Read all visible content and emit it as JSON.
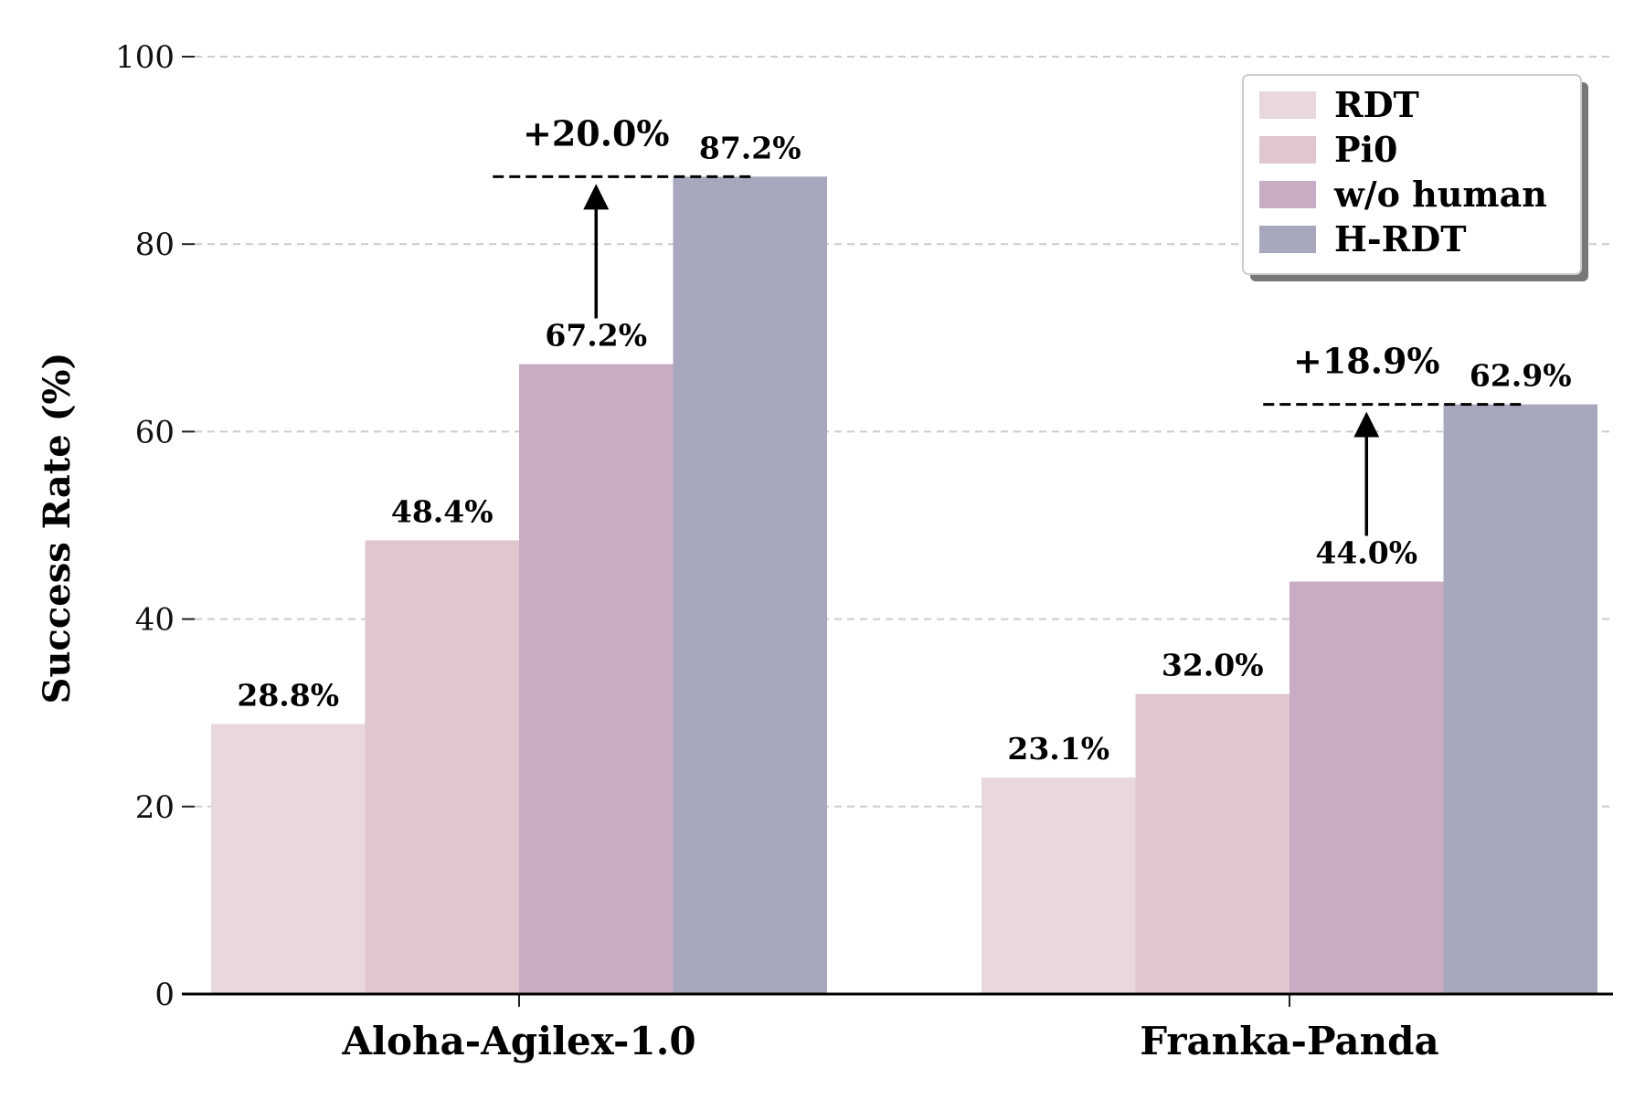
{
  "chart_data": {
    "type": "bar",
    "categories": [
      "Aloha-Agilex-1.0",
      "Franka-Panda"
    ],
    "series": [
      {
        "name": "RDT",
        "values": [
          28.8,
          23.1
        ],
        "color": "#e8d7de"
      },
      {
        "name": "Pi0",
        "values": [
          48.4,
          32.0
        ],
        "color": "#dfc6cf"
      },
      {
        "name": "w/o human",
        "values": [
          67.2,
          44.0
        ],
        "color": "#c8acc4"
      },
      {
        "name": "H-RDT",
        "values": [
          87.2,
          62.9
        ],
        "color": "#a7a8bd"
      }
    ],
    "bar_labels": [
      [
        "28.8%",
        "23.1%"
      ],
      [
        "48.4%",
        "32.0%"
      ],
      [
        "67.2%",
        "44.0%"
      ],
      [
        "87.2%",
        "62.9%"
      ]
    ],
    "improvements": [
      {
        "category": "Aloha-Agilex-1.0",
        "from": 67.2,
        "to": 87.2,
        "label": "+20.0%"
      },
      {
        "category": "Franka-Panda",
        "from": 44.0,
        "to": 62.9,
        "label": "+18.9%"
      }
    ],
    "ylabel": "Success Rate (%)",
    "xlabel": "",
    "title": "",
    "ylim": [
      0,
      100
    ],
    "yticks": [
      0,
      20,
      40,
      60,
      80,
      100
    ],
    "grid": "y-dashed",
    "legend_position": "top-right"
  }
}
